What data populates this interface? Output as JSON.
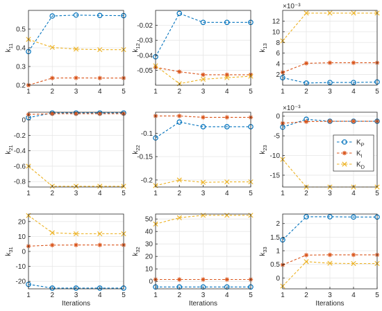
{
  "chart_data": {
    "type": "line",
    "grid": true,
    "x": [
      1,
      2,
      3,
      4,
      5
    ],
    "xlim": [
      1,
      5
    ],
    "xticks": [
      "1",
      "2",
      "3",
      "4",
      "5"
    ],
    "xlabel": "Iterations",
    "series_style": [
      {
        "name": "K_P",
        "color": "#0072BD",
        "marker": "circle"
      },
      {
        "name": "K_I",
        "color": "#D95319",
        "marker": "asterisk"
      },
      {
        "name": "K_D",
        "color": "#EDB120",
        "marker": "cross"
      }
    ],
    "legend": {
      "location": "inside k23 panel, right",
      "entries": [
        {
          "base": "K",
          "sub": "P"
        },
        {
          "base": "K",
          "sub": "I"
        },
        {
          "base": "K",
          "sub": "D"
        }
      ]
    },
    "subplots": [
      {
        "ylabel_base": "k",
        "ylabel_sub": "11",
        "ylim": [
          0.2,
          0.6
        ],
        "yticks": [
          0.2,
          0.3,
          0.4,
          0.5
        ],
        "ytick_labels": [
          "0.2",
          "0.3",
          "0.4",
          "0.5"
        ],
        "exponent": "",
        "series": [
          [
            0.38,
            0.57,
            0.575,
            0.573,
            0.572
          ],
          [
            0.2,
            0.238,
            0.239,
            0.238,
            0.238
          ],
          [
            0.445,
            0.402,
            0.393,
            0.39,
            0.39
          ]
        ],
        "show_xlabel": false
      },
      {
        "ylabel_base": "k",
        "ylabel_sub": "12",
        "ylim": [
          -0.06,
          -0.01
        ],
        "yticks": [
          -0.05,
          -0.04,
          -0.03,
          -0.02
        ],
        "ytick_labels": [
          "-0.05",
          "-0.04",
          "-0.03",
          "-0.02"
        ],
        "exponent": "",
        "series": [
          [
            -0.041,
            -0.012,
            -0.018,
            -0.018,
            -0.018
          ],
          [
            -0.048,
            -0.051,
            -0.053,
            -0.053,
            -0.053
          ],
          [
            -0.047,
            -0.059,
            -0.056,
            -0.055,
            -0.054
          ]
        ],
        "show_xlabel": false
      },
      {
        "ylabel_base": "k",
        "ylabel_sub": "13",
        "ylim": [
          0,
          14
        ],
        "yticks": [
          2,
          4,
          6,
          8,
          10,
          12
        ],
        "ytick_labels": [
          "2",
          "4",
          "6",
          "8",
          "10",
          "12"
        ],
        "exponent": "×10⁻³",
        "series": [
          [
            1.4,
            0.4,
            0.5,
            0.5,
            0.6
          ],
          [
            2.4,
            4.1,
            4.2,
            4.2,
            4.2
          ],
          [
            8.3,
            13.5,
            13.5,
            13.5,
            13.5
          ]
        ],
        "show_xlabel": false
      },
      {
        "ylabel_base": "k",
        "ylabel_sub": "21",
        "ylim": [
          -0.87,
          0.1
        ],
        "yticks": [
          -0.8,
          -0.6,
          -0.4,
          -0.2,
          0
        ],
        "ytick_labels": [
          "-0.8",
          "-0.6",
          "-0.4",
          "-0.2",
          "0"
        ],
        "exponent": "",
        "series": [
          [
            0.03,
            0.09,
            0.09,
            0.09,
            0.09
          ],
          [
            0.07,
            0.08,
            0.08,
            0.08,
            0.08
          ],
          [
            -0.6,
            -0.86,
            -0.86,
            -0.86,
            -0.86
          ]
        ],
        "show_xlabel": false
      },
      {
        "ylabel_base": "k",
        "ylabel_sub": "22",
        "ylim": [
          -0.215,
          -0.055
        ],
        "yticks": [
          -0.2,
          -0.15,
          -0.1
        ],
        "ytick_labels": [
          "-0.2",
          "-0.15",
          "-0.1"
        ],
        "exponent": "",
        "series": [
          [
            -0.11,
            -0.076,
            -0.086,
            -0.086,
            -0.086
          ],
          [
            -0.063,
            -0.063,
            -0.066,
            -0.066,
            -0.066
          ],
          [
            -0.212,
            -0.2,
            -0.205,
            -0.204,
            -0.204
          ]
        ],
        "show_xlabel": false
      },
      {
        "ylabel_base": "k",
        "ylabel_sub": "23",
        "ylim": [
          -18,
          1
        ],
        "yticks": [
          -15,
          -10,
          -5,
          0
        ],
        "ytick_labels": [
          "-15",
          "-10",
          "-5",
          "0"
        ],
        "exponent": "×10⁻³",
        "series": [
          [
            -2.8,
            -0.8,
            -1.3,
            -1.3,
            -1.3
          ],
          [
            -1.8,
            -1.4,
            -1.3,
            -1.3,
            -1.3
          ],
          [
            -11,
            -18,
            -18,
            -18,
            -18
          ]
        ],
        "show_xlabel": false
      },
      {
        "ylabel_base": "k",
        "ylabel_sub": "31",
        "ylim": [
          -25,
          25
        ],
        "yticks": [
          -20,
          -10,
          0,
          10,
          20
        ],
        "ytick_labels": [
          "-20",
          "-10",
          "0",
          "10",
          "20"
        ],
        "exponent": "",
        "series": [
          [
            -22,
            -24.5,
            -24.5,
            -24.5,
            -24.5
          ],
          [
            3.5,
            4.2,
            4.3,
            4.3,
            4.3
          ],
          [
            24,
            12.5,
            11.8,
            11.8,
            11.8
          ]
        ],
        "show_xlabel": true
      },
      {
        "ylabel_base": "k",
        "ylabel_sub": "32",
        "ylim": [
          -6,
          54
        ],
        "yticks": [
          0,
          10,
          20,
          30,
          40,
          50
        ],
        "ytick_labels": [
          "0",
          "10",
          "20",
          "30",
          "40",
          "50"
        ],
        "exponent": "",
        "series": [
          [
            -4.5,
            -4.5,
            -4.5,
            -4.5,
            -4.5
          ],
          [
            1.5,
            1.5,
            1.5,
            1.5,
            1.5
          ],
          [
            46,
            51,
            53,
            53,
            53
          ]
        ],
        "show_xlabel": true
      },
      {
        "ylabel_base": "k",
        "ylabel_sub": "33",
        "ylim": [
          -0.4,
          2.35
        ],
        "yticks": [
          0,
          0.5,
          1,
          1.5,
          2
        ],
        "ytick_labels": [
          "0",
          "0.5",
          "1",
          "1.5",
          "2"
        ],
        "exponent": "",
        "series": [
          [
            1.4,
            2.25,
            2.25,
            2.24,
            2.24
          ],
          [
            0.48,
            0.84,
            0.85,
            0.85,
            0.85
          ],
          [
            -0.3,
            0.6,
            0.54,
            0.53,
            0.53
          ]
        ],
        "show_xlabel": true
      }
    ]
  }
}
